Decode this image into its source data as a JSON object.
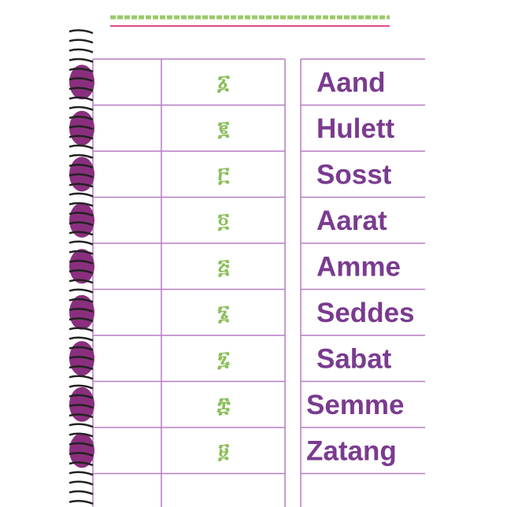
{
  "rows": [
    {
      "numeral": "፩",
      "name": "Aand"
    },
    {
      "numeral": "፪",
      "name": "Hulett"
    },
    {
      "numeral": "፫",
      "name": "Sosst"
    },
    {
      "numeral": "፬",
      "name": "Aarat"
    },
    {
      "numeral": "፭",
      "name": "Amme"
    },
    {
      "numeral": "፮",
      "name": "Seddes"
    },
    {
      "numeral": "፯",
      "name": "Sabat"
    },
    {
      "numeral": "፰",
      "name": "Semme"
    },
    {
      "numeral": "፱",
      "name": "Zatang"
    }
  ]
}
